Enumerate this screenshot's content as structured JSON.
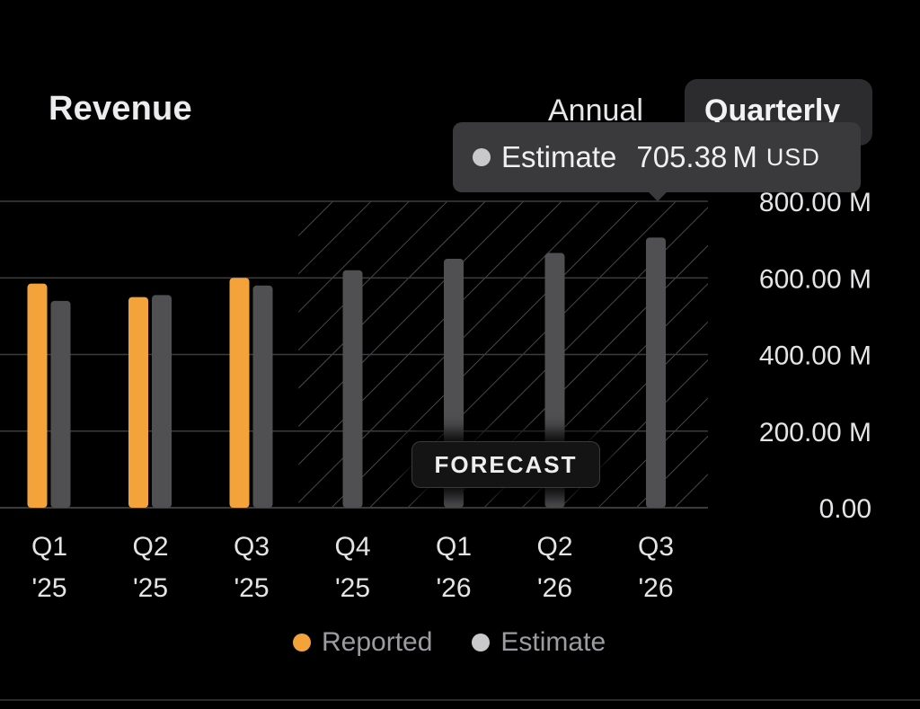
{
  "header": {
    "title": "Revenue"
  },
  "period_toggle": {
    "annual_label": "Annual",
    "quarterly_label": "Quarterly",
    "selected": "Quarterly"
  },
  "tooltip": {
    "label": "Estimate",
    "value": "705.38",
    "unit": "M",
    "currency": "USD",
    "dot_color": "#c9c9cb"
  },
  "forecast_badge": "FORECAST",
  "colors": {
    "reported": "#f3a33a",
    "estimate": "#505052",
    "grid": "#3c3c3e",
    "background": "#000000"
  },
  "chart_data": {
    "type": "bar",
    "title": "Revenue",
    "categories": [
      [
        "Q1",
        "'25"
      ],
      [
        "Q2",
        "'25"
      ],
      [
        "Q3",
        "'25"
      ],
      [
        "Q4",
        "'25"
      ],
      [
        "Q1",
        "'26"
      ],
      [
        "Q2",
        "'26"
      ],
      [
        "Q3",
        "'26"
      ]
    ],
    "series": [
      {
        "name": "Reported",
        "color": "#f3a33a",
        "values": [
          585,
          550,
          600,
          null,
          null,
          null,
          null
        ]
      },
      {
        "name": "Estimate",
        "color": "#505052",
        "values": [
          540,
          555,
          580,
          620,
          650,
          665,
          705.38
        ]
      }
    ],
    "forecast_start_index": 3,
    "y_ticks": [
      {
        "value": 0,
        "label": "0.00"
      },
      {
        "value": 200,
        "label": "200.00 M"
      },
      {
        "value": 400,
        "label": "400.00 M"
      },
      {
        "value": 600,
        "label": "600.00 M"
      },
      {
        "value": 800,
        "label": "800.00 M"
      }
    ],
    "ylim": [
      0,
      800
    ],
    "yunit": "M USD",
    "grid": true,
    "legend": [
      {
        "label": "Reported",
        "color": "#f3a33a"
      },
      {
        "label": "Estimate",
        "color": "#c9c9cb"
      }
    ]
  }
}
